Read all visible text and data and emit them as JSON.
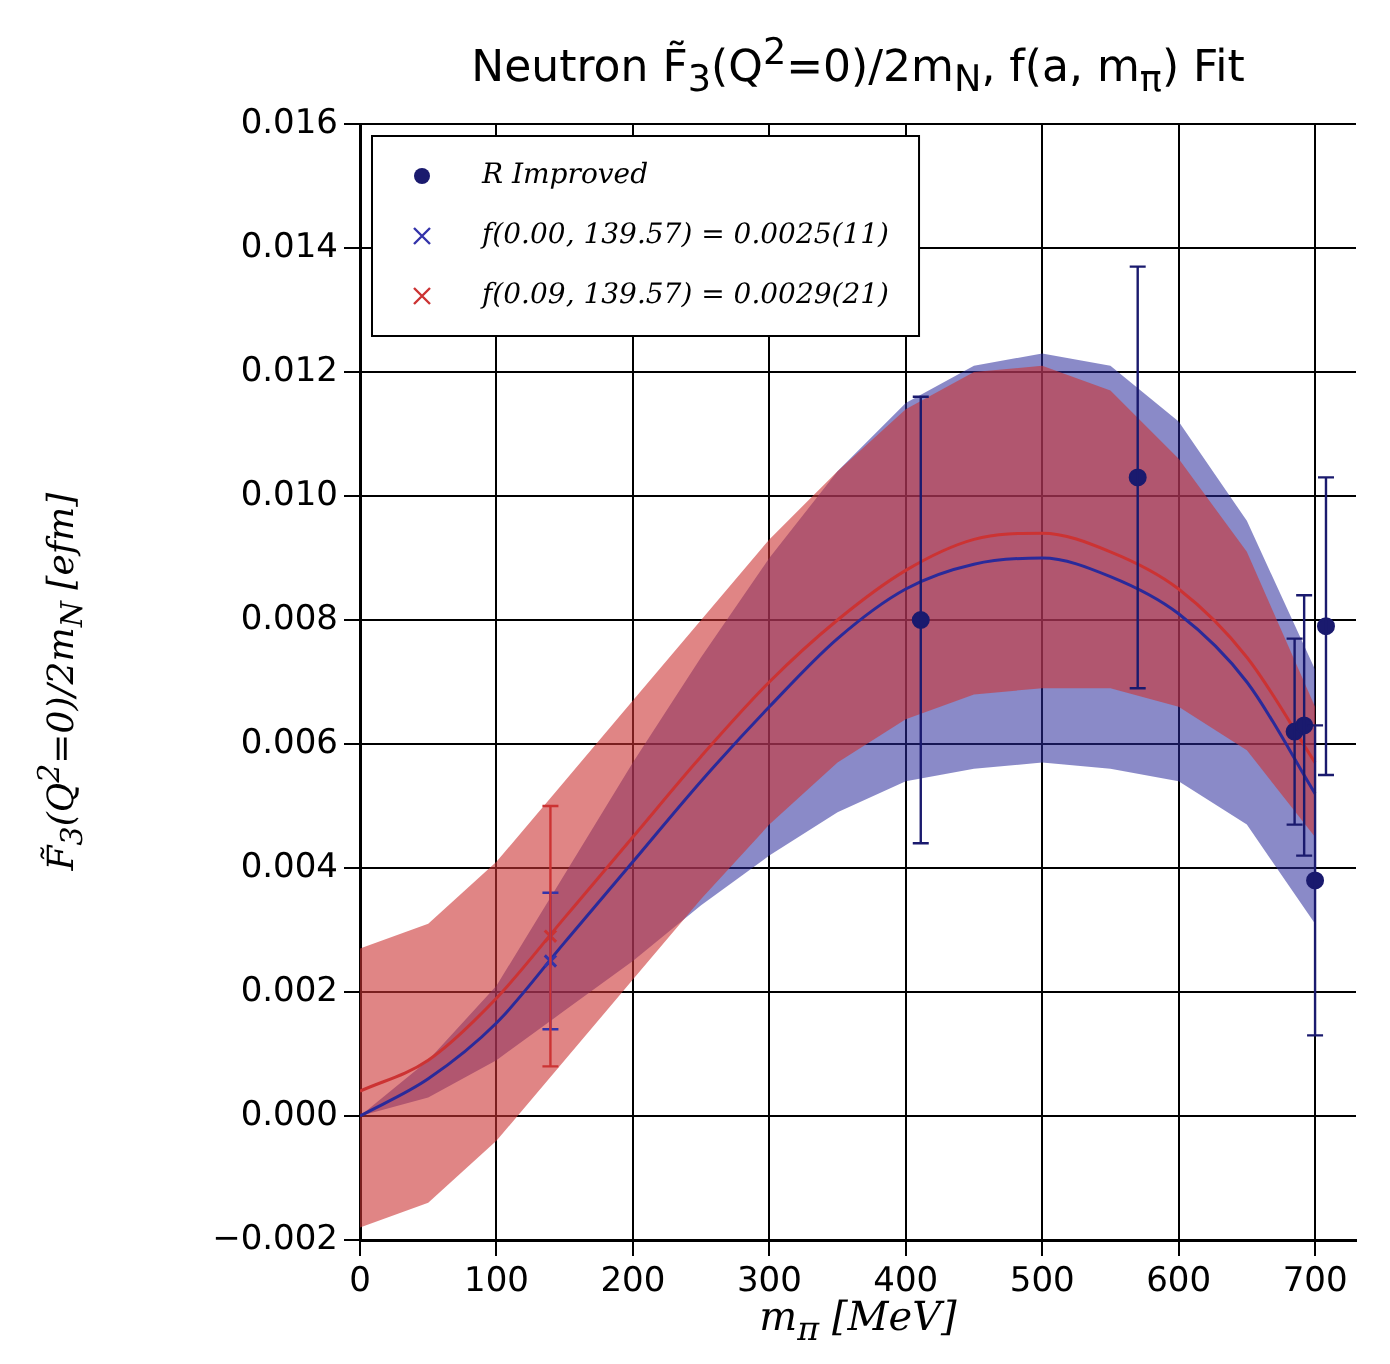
{
  "chart_data": {
    "type": "scatter",
    "title": "Neutron F̃$_{3}$(Q$^{2}$=0)/2m$_{N}$, f(a, m$_{π}$) Fit",
    "xlabel": "m$_{π}$ [MeV]",
    "ylabel": "F̃$_{3}$(Q$^{2}$=0)/2m$_{N}$ [efm]",
    "xlim": [
      0,
      730
    ],
    "xticks": [
      0,
      100,
      200,
      300,
      400,
      500,
      600,
      700
    ],
    "ylim": [
      -0.002,
      0.016
    ],
    "yticks": [
      {
        "value": -0.002,
        "label": "−0.002"
      },
      {
        "value": 0,
        "label": "0.000"
      },
      0.002,
      0.004,
      0.006,
      0.008,
      {
        "value": 0.01,
        "label": "0.010"
      },
      0.012,
      0.014,
      0.016
    ],
    "grid": true,
    "legend": "top left",
    "marker": "circle",
    "series": [
      {
        "name": "R Improved",
        "color": "#1a1a6e",
        "x": [
          411,
          570,
          685,
          692,
          700,
          708
        ],
        "values": [
          0.008,
          0.0103,
          0.0062,
          0.0063,
          0.0038,
          0.0079
        ],
        "errors": [
          0.0036,
          0.0034,
          0.0015,
          0.0021,
          0.0025,
          0.0024
        ]
      },
      {
        "name": "f(0.00, 139.57) = 0.0025(11)",
        "color": "#3333aa",
        "marker": "cross",
        "x": [
          139.57
        ],
        "values": [
          0.0025
        ],
        "errors": [
          0.0011
        ]
      },
      {
        "name": "f(0.09, 139.57) = 0.0029(21)",
        "color": "#cc3333",
        "marker": "cross",
        "x": [
          139.57
        ],
        "values": [
          0.0029
        ],
        "errors": [
          0.0021
        ]
      },
      {
        "type": "line",
        "color": "#2a2a9a",
        "marker": "none",
        "x": [
          0,
          50,
          100,
          150,
          200,
          250,
          300,
          350,
          400,
          450,
          500,
          550,
          600,
          650,
          700
        ],
        "values": [
          0.0,
          0.0006,
          0.0015,
          0.0028,
          0.0041,
          0.0054,
          0.0066,
          0.0077,
          0.0085,
          0.0089,
          0.009,
          0.0087,
          0.0081,
          0.007,
          0.0052
        ],
        "lower": [
          0.0,
          0.0003,
          0.0009,
          0.0017,
          0.0025,
          0.0034,
          0.0042,
          0.0049,
          0.0054,
          0.0056,
          0.0057,
          0.0056,
          0.0054,
          0.0047,
          0.0031
        ],
        "upper": [
          0.0,
          0.0009,
          0.0021,
          0.0039,
          0.0057,
          0.0074,
          0.009,
          0.0104,
          0.0115,
          0.0121,
          0.0123,
          0.0121,
          0.0112,
          0.0096,
          0.0072
        ]
      },
      {
        "type": "line",
        "color": "#cc3333",
        "marker": "none",
        "x": [
          0,
          50,
          100,
          150,
          200,
          250,
          300,
          350,
          400,
          450,
          500,
          550,
          600,
          650,
          700
        ],
        "values": [
          0.0004,
          0.0009,
          0.0019,
          0.0032,
          0.0045,
          0.0058,
          0.007,
          0.008,
          0.0088,
          0.0093,
          0.0094,
          0.0091,
          0.0085,
          0.0074,
          0.0057
        ],
        "lower": [
          -0.0018,
          -0.0014,
          -0.0004,
          0.0009,
          0.0022,
          0.0035,
          0.0047,
          0.0057,
          0.0064,
          0.0068,
          0.0069,
          0.0069,
          0.0066,
          0.0059,
          0.0045
        ],
        "upper": [
          0.0027,
          0.0031,
          0.0041,
          0.0054,
          0.0067,
          0.008,
          0.0093,
          0.0104,
          0.0114,
          0.012,
          0.0121,
          0.0117,
          0.0106,
          0.0091,
          0.0066
        ]
      }
    ]
  }
}
